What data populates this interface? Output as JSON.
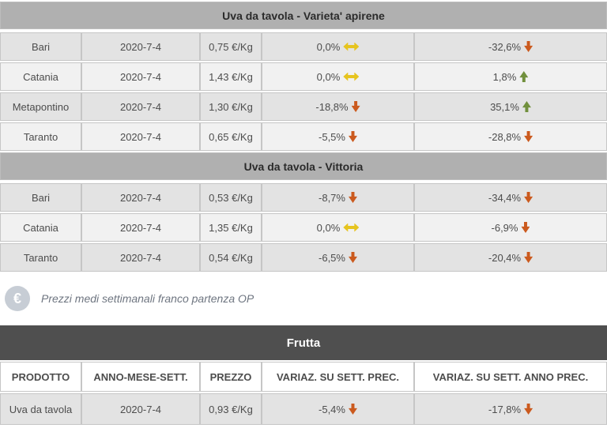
{
  "colors": {
    "section_header_bg": "#b0b0b0",
    "frutta_header_bg": "#4f4f4f",
    "row_dark": "#e3e3e3",
    "row_light": "#f1f1f1",
    "trend_down": "#cb5a1e",
    "trend_up": "#71903d",
    "trend_flat": "#e6c41f"
  },
  "price_table": {
    "sections": [
      {
        "title": "Uva da tavola - Varieta' apirene",
        "rows": [
          {
            "market": "Bari",
            "date": "2020-7-4",
            "price": "0,75 €/Kg",
            "var_week": "0,0%",
            "var_week_trend": "flat",
            "var_year": "-32,6%",
            "var_year_trend": "down"
          },
          {
            "market": "Catania",
            "date": "2020-7-4",
            "price": "1,43 €/Kg",
            "var_week": "0,0%",
            "var_week_trend": "flat",
            "var_year": "1,8%",
            "var_year_trend": "up"
          },
          {
            "market": "Metapontino",
            "date": "2020-7-4",
            "price": "1,30 €/Kg",
            "var_week": "-18,8%",
            "var_week_trend": "down",
            "var_year": "35,1%",
            "var_year_trend": "up"
          },
          {
            "market": "Taranto",
            "date": "2020-7-4",
            "price": "0,65 €/Kg",
            "var_week": "-5,5%",
            "var_week_trend": "down",
            "var_year": "-28,8%",
            "var_year_trend": "down"
          }
        ]
      },
      {
        "title": "Uva da tavola - Vittoria",
        "rows": [
          {
            "market": "Bari",
            "date": "2020-7-4",
            "price": "0,53 €/Kg",
            "var_week": "-8,7%",
            "var_week_trend": "down",
            "var_year": "-34,4%",
            "var_year_trend": "down"
          },
          {
            "market": "Catania",
            "date": "2020-7-4",
            "price": "1,35 €/Kg",
            "var_week": "0,0%",
            "var_week_trend": "flat",
            "var_year": "-6,9%",
            "var_year_trend": "down"
          },
          {
            "market": "Taranto",
            "date": "2020-7-4",
            "price": "0,54 €/Kg",
            "var_week": "-6,5%",
            "var_week_trend": "down",
            "var_year": "-20,4%",
            "var_year_trend": "down"
          }
        ]
      }
    ]
  },
  "note": {
    "icon": "euro-icon",
    "icon_glyph": "€",
    "text": "Prezzi medi settimanali franco partenza OP"
  },
  "frutta_table": {
    "title": "Frutta",
    "headers": [
      "PRODOTTO",
      "ANNO-MESE-SETT.",
      "PREZZO",
      "VARIAZ. SU SETT. PREC.",
      "VARIAZ. SU SETT. ANNO PREC."
    ],
    "rows": [
      {
        "product": "Uva da tavola",
        "date": "2020-7-4",
        "price": "0,93 €/Kg",
        "var_week": "-5,4%",
        "var_week_trend": "down",
        "var_year": "-17,8%",
        "var_year_trend": "down"
      }
    ]
  }
}
